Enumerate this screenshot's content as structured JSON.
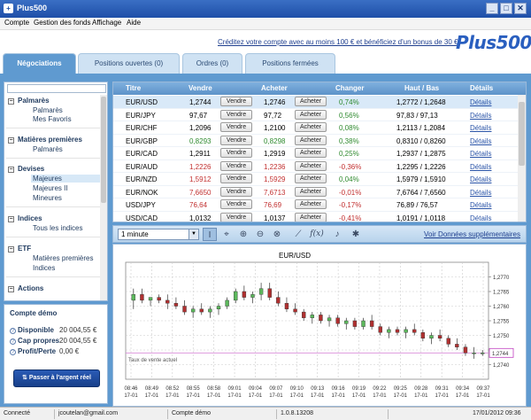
{
  "app": {
    "title": "Plus500",
    "icon": "plus500-app-icon"
  },
  "window_controls": {
    "minimize": "_",
    "maximize": "□",
    "close": "✕"
  },
  "menu": [
    "Compte",
    "Gestion des fonds",
    "Affichage",
    "Aide"
  ],
  "header": {
    "bonus_link": "Créditez votre compte avec au moins 100 € et bénéficiez d'un bonus de 30 €",
    "logo": "Plus500"
  },
  "tabs": [
    "Négociations",
    "Positions ouvertes (0)",
    "Ordres (0)",
    "Positions fermées"
  ],
  "active_tab": 0,
  "categories": [
    {
      "label": "Palmarès",
      "items": [
        "Palmarès",
        "Mes Favoris"
      ]
    },
    {
      "label": "Matières premières",
      "items": [
        "Palmarès"
      ]
    },
    {
      "label": "Devises",
      "items": [
        "Majeures",
        "Majeures II",
        "Mineures"
      ]
    },
    {
      "label": "Indices",
      "items": [
        "Tous les indices"
      ]
    },
    {
      "label": "ETF",
      "items": [
        "Matières premières",
        "Indices"
      ]
    },
    {
      "label": "Actions",
      "items": []
    }
  ],
  "selected_subcategory": "Majeures",
  "account": {
    "title": "Compte démo",
    "rows": [
      {
        "label": "Disponible",
        "value": "20 004,55 €"
      },
      {
        "label": "Cap propres",
        "value": "20 004,55 €"
      },
      {
        "label": "Profit/Perte",
        "value": "0,00 €"
      }
    ],
    "transfer_button": "Passer à l'argent réel"
  },
  "table": {
    "headers": [
      "Titre",
      "Vendre",
      "Acheter",
      "Changer",
      "Haut / Bas",
      "Détails"
    ],
    "sell_button": "Vendre",
    "buy_button": "Acheter",
    "details_link": "Détails",
    "rows": [
      {
        "title": "EUR/USD",
        "sell": "1,2744",
        "buy": "1,2746",
        "change": "0,74%",
        "highlow": "1,2772 / 1,2648",
        "dir": "neutral"
      },
      {
        "title": "EUR/JPY",
        "sell": "97,67",
        "buy": "97,72",
        "change": "0,56%",
        "highlow": "97,83 / 97,13",
        "dir": "neutral"
      },
      {
        "title": "EUR/CHF",
        "sell": "1,2096",
        "buy": "1,2100",
        "change": "0,08%",
        "highlow": "1,2113 / 1,2084",
        "dir": "neutral"
      },
      {
        "title": "EUR/GBP",
        "sell": "0,8293",
        "buy": "0,8298",
        "change": "0,38%",
        "highlow": "0,8310 / 0,8260",
        "dir": "up"
      },
      {
        "title": "EUR/CAD",
        "sell": "1,2911",
        "buy": "1,2919",
        "change": "0,25%",
        "highlow": "1,2937 / 1,2875",
        "dir": "neutral"
      },
      {
        "title": "EUR/AUD",
        "sell": "1,2226",
        "buy": "1,2236",
        "change": "-0,36%",
        "highlow": "1,2295 / 1,2226",
        "dir": "down"
      },
      {
        "title": "EUR/NZD",
        "sell": "1,5912",
        "buy": "1,5929",
        "change": "0,04%",
        "highlow": "1,5979 / 1,5910",
        "dir": "down"
      },
      {
        "title": "EUR/NOK",
        "sell": "7,6650",
        "buy": "7,6713",
        "change": "-0,01%",
        "highlow": "7,6764 / 7,6560",
        "dir": "down"
      },
      {
        "title": "USD/JPY",
        "sell": "76,64",
        "buy": "76,69",
        "change": "-0,17%",
        "highlow": "76,89 / 76,57",
        "dir": "down"
      },
      {
        "title": "USD/CAD",
        "sell": "1,0132",
        "buy": "1,0137",
        "change": "-0,41%",
        "highlow": "1,0191 / 1,0118",
        "dir": "neutral"
      }
    ]
  },
  "toolbar": {
    "interval": "1 minute",
    "tools": [
      "text-cursor-icon",
      "crosshair-icon",
      "zoom-in-icon",
      "zoom-out-icon",
      "zoom-reset-icon",
      "line-chart-icon",
      "function-icon",
      "bell-icon",
      "settings-icon"
    ],
    "more_data_link": "Voir Données supplémentaires"
  },
  "chart_data": {
    "type": "candlestick",
    "title": "EUR/USD",
    "annotation": "Taux de vente actuel",
    "current_price_label": "1,2744",
    "current_price": 1.2744,
    "ylim": [
      1.2735,
      1.2775
    ],
    "yticks": [
      1.274,
      1.2745,
      1.275,
      1.2755,
      1.276,
      1.2765,
      1.277
    ],
    "ytick_labels": [
      "1,2740",
      "1,2745",
      "1,2750",
      "1,2755",
      "1,2760",
      "1,2765",
      "1,2770"
    ],
    "xtick_times": [
      "08:46",
      "08:49",
      "08:52",
      "08:55",
      "08:58",
      "09:01",
      "09:04",
      "09:07",
      "09:10",
      "09:13",
      "09:16",
      "09:19",
      "09:22",
      "09:25",
      "09:28",
      "09:31",
      "09:34",
      "09:37"
    ],
    "xtick_date": "17-01",
    "candles": [
      [
        1.2762,
        1.2766,
        1.2759,
        1.2764
      ],
      [
        1.2764,
        1.2766,
        1.2761,
        1.2762
      ],
      [
        1.2762,
        1.2763,
        1.276,
        1.2763
      ],
      [
        1.2763,
        1.2764,
        1.2761,
        1.2762
      ],
      [
        1.2762,
        1.2764,
        1.2759,
        1.2761
      ],
      [
        1.2761,
        1.2763,
        1.2759,
        1.276
      ],
      [
        1.276,
        1.2762,
        1.2757,
        1.2758
      ],
      [
        1.2758,
        1.276,
        1.2756,
        1.2759
      ],
      [
        1.2759,
        1.2761,
        1.2757,
        1.2758
      ],
      [
        1.2758,
        1.276,
        1.2756,
        1.2759
      ],
      [
        1.2759,
        1.2761,
        1.2757,
        1.276
      ],
      [
        1.276,
        1.2763,
        1.2759,
        1.2762
      ],
      [
        1.2762,
        1.2766,
        1.2761,
        1.2765
      ],
      [
        1.2765,
        1.2767,
        1.2762,
        1.2763
      ],
      [
        1.2763,
        1.2765,
        1.2761,
        1.2764
      ],
      [
        1.2764,
        1.2768,
        1.2762,
        1.2766
      ],
      [
        1.2766,
        1.2768,
        1.2762,
        1.2763
      ],
      [
        1.2763,
        1.2765,
        1.276,
        1.2761
      ],
      [
        1.2761,
        1.2763,
        1.2758,
        1.2759
      ],
      [
        1.2759,
        1.2761,
        1.2757,
        1.2758
      ],
      [
        1.2758,
        1.2759,
        1.2755,
        1.2756
      ],
      [
        1.2756,
        1.2758,
        1.2754,
        1.2757
      ],
      [
        1.2757,
        1.2758,
        1.2754,
        1.2755
      ],
      [
        1.2755,
        1.2757,
        1.2753,
        1.2756
      ],
      [
        1.2756,
        1.2757,
        1.2753,
        1.2754
      ],
      [
        1.2754,
        1.2756,
        1.2752,
        1.2755
      ],
      [
        1.2755,
        1.2756,
        1.2752,
        1.2753
      ],
      [
        1.2753,
        1.2756,
        1.2752,
        1.2755
      ],
      [
        1.2755,
        1.2757,
        1.2752,
        1.2753
      ],
      [
        1.2753,
        1.2754,
        1.275,
        1.2751
      ],
      [
        1.2751,
        1.2753,
        1.2749,
        1.2752
      ],
      [
        1.2752,
        1.2753,
        1.275,
        1.2751
      ],
      [
        1.2751,
        1.2753,
        1.2749,
        1.2752
      ],
      [
        1.2752,
        1.2754,
        1.275,
        1.2751
      ],
      [
        1.2751,
        1.2752,
        1.2748,
        1.2749
      ],
      [
        1.2749,
        1.2751,
        1.2747,
        1.275
      ],
      [
        1.275,
        1.2752,
        1.2748,
        1.2749
      ],
      [
        1.2749,
        1.275,
        1.2746,
        1.2747
      ],
      [
        1.2747,
        1.2749,
        1.2745,
        1.2746
      ],
      [
        1.2746,
        1.2747,
        1.2743,
        1.2744
      ],
      [
        1.2744,
        1.2746,
        1.2742,
        1.2744
      ],
      [
        1.2744,
        1.2745,
        1.2743,
        1.2744
      ]
    ],
    "up_color": "#5cb85c",
    "down_color": "#b03030"
  },
  "status": {
    "connection": "Connecté",
    "user": "jcoutelan@gmail.com",
    "account_type": "Compte démo",
    "version": "1.0.8.13208",
    "datetime": "17/01/2012 09:36"
  }
}
